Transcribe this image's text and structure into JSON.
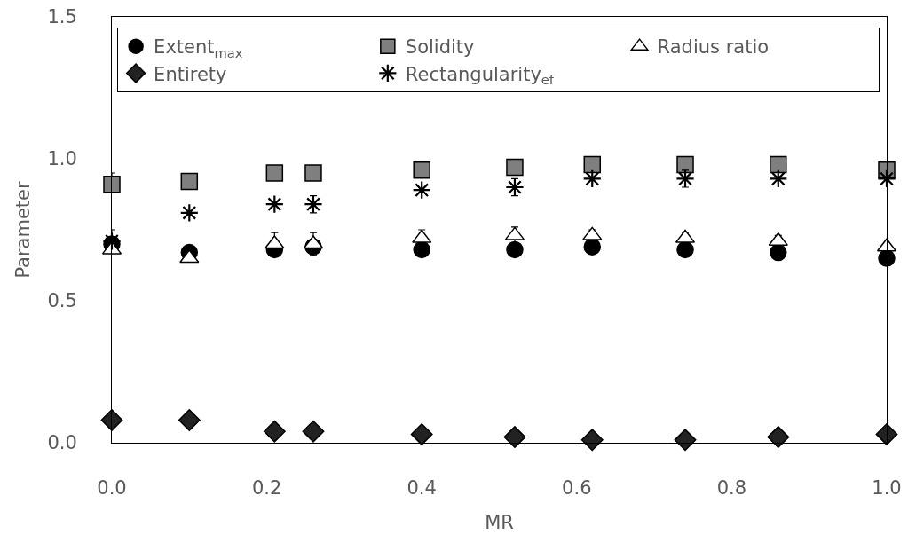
{
  "chart_data": {
    "type": "scatter",
    "xlabel": "MR",
    "ylabel": "Parameter",
    "x": [
      0,
      0.1,
      0.21,
      0.26,
      0.4,
      0.52,
      0.62,
      0.74,
      0.86,
      1.0
    ],
    "xlim": [
      0,
      1
    ],
    "xticks": [
      {
        "value": 0,
        "label": "0.0"
      },
      0.2,
      0.4,
      0.6,
      0.8,
      {
        "value": 1,
        "label": "1.0"
      }
    ],
    "ylim": [
      0,
      1.5
    ],
    "yticks": [
      {
        "value": 0,
        "label": "0.0"
      },
      0.5,
      {
        "value": 1,
        "label": "1.0"
      },
      1.5
    ],
    "grid": false,
    "legend": "top",
    "series": [
      {
        "name": "Extent$_{max}$",
        "color": "#000000",
        "marker": "circle",
        "values": [
          0.7,
          0.67,
          0.68,
          0.69,
          0.68,
          0.68,
          0.69,
          0.68,
          0.67,
          0.65
        ]
      },
      {
        "name": "Solidity",
        "color": "#7f7f7f",
        "marker": "square",
        "values": [
          0.91,
          0.92,
          0.95,
          0.95,
          0.96,
          0.97,
          0.98,
          0.98,
          0.98,
          0.96
        ],
        "errors": [
          [
            0.91,
            0.95
          ],
          null,
          null,
          null,
          null,
          null,
          null,
          null,
          null,
          null
        ]
      },
      {
        "name": "Radius ratio",
        "color": "#ffffff",
        "marker": "triangle",
        "values": [
          0.68,
          0.65,
          0.7,
          0.7,
          0.72,
          0.73,
          0.73,
          0.72,
          0.71,
          0.69
        ],
        "errors": [
          null,
          null,
          0.04,
          0.04,
          0.03,
          0.03,
          0.02,
          0.02,
          0.02,
          0.01
        ]
      },
      {
        "name": "Entirety",
        "color": "#222222",
        "marker": "diamond",
        "values": [
          0.08,
          0.08,
          0.04,
          0.04,
          0.03,
          0.02,
          0.01,
          0.01,
          0.02,
          0.03
        ]
      },
      {
        "name": "Rectangularity$_{ef}$",
        "color": "#000000",
        "marker": "cross",
        "values": [
          0.71,
          0.81,
          0.84,
          0.84,
          0.89,
          0.9,
          0.93,
          0.93,
          0.93,
          0.93
        ],
        "errors": [
          [
            0.71,
            0.75
          ],
          null,
          null,
          0.03,
          null,
          0.03,
          null,
          0.03,
          null,
          null
        ]
      }
    ]
  }
}
